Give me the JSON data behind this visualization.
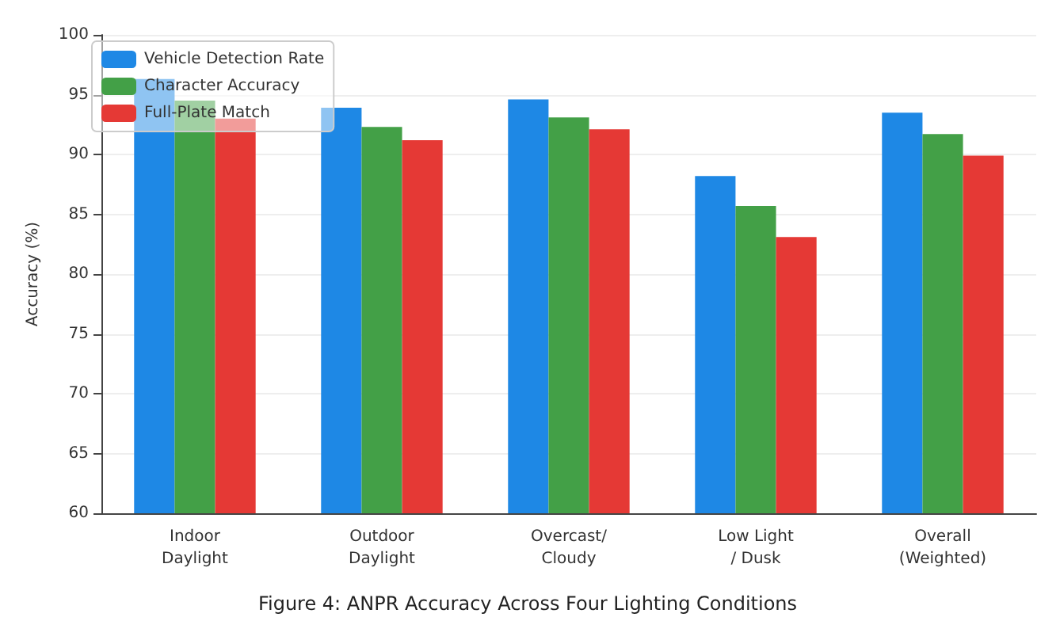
{
  "chart_data": {
    "type": "bar",
    "title": "Figure 4: ANPR Accuracy Across Four Lighting Conditions",
    "ylabel": "Accuracy (%)",
    "categories": [
      "Indoor\nDaylight",
      "Outdoor\nDaylight",
      "Overcast/\nCloudy",
      "Low Light\n/ Dusk",
      "Overall\n(Weighted)"
    ],
    "series": [
      {
        "name": "Vehicle Detection Rate",
        "color": "#1e88e5",
        "values": [
          96.3,
          93.9,
          94.6,
          88.2,
          93.5
        ]
      },
      {
        "name": "Character Accuracy",
        "color": "#43a047",
        "values": [
          94.5,
          92.3,
          93.1,
          85.7,
          91.7
        ]
      },
      {
        "name": "Full-Plate Match",
        "color": "#e53935",
        "values": [
          93.0,
          91.2,
          92.1,
          83.1,
          89.9
        ]
      }
    ],
    "ylim": [
      60,
      100
    ],
    "yticks": [
      60,
      65,
      70,
      75,
      80,
      85,
      90,
      95,
      100
    ],
    "grid": "y",
    "legend": "top left"
  }
}
